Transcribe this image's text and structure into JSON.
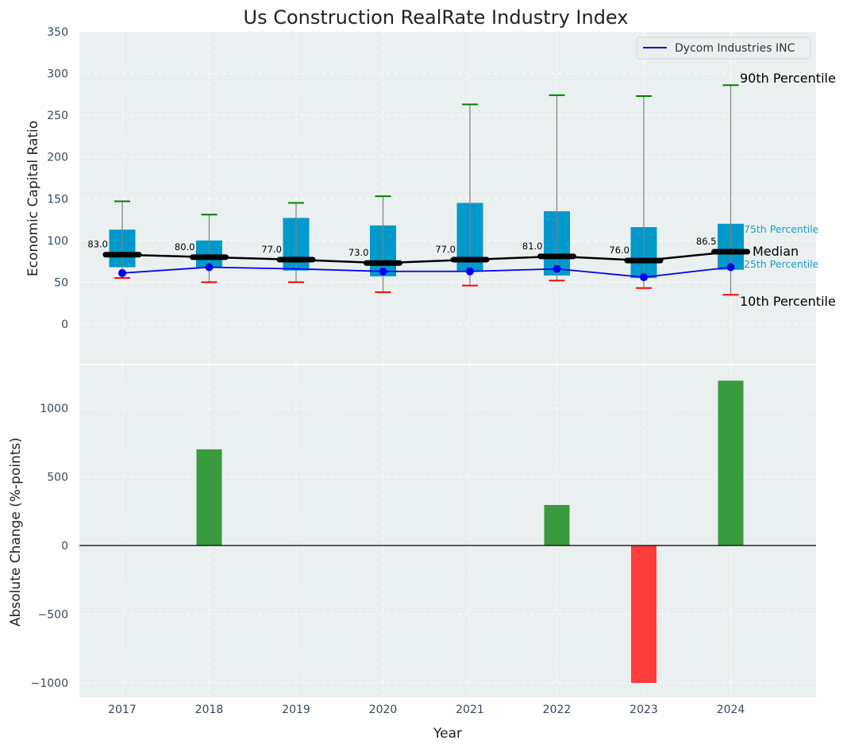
{
  "chart_data": [
    {
      "type": "box",
      "title": "Us Construction RealRate Industry Index",
      "xlabel": "",
      "ylabel": "Economic Capital Ratio",
      "ylim": [
        -50,
        350
      ],
      "yticks": [
        0,
        50,
        100,
        150,
        200,
        250,
        300,
        350
      ],
      "grid": true,
      "categories": [
        "2017",
        "2018",
        "2019",
        "2020",
        "2021",
        "2022",
        "2023",
        "2024"
      ],
      "percentiles": {
        "p10": [
          55,
          50,
          50,
          38,
          46,
          52,
          43,
          35
        ],
        "p25": [
          68,
          67,
          64,
          57,
          63,
          58,
          55,
          65
        ],
        "median": [
          83.0,
          80.0,
          77.0,
          73.0,
          77.0,
          81.0,
          76.0,
          86.5
        ],
        "p75": [
          113,
          100,
          127,
          118,
          145,
          135,
          116,
          120
        ],
        "p90": [
          147,
          131,
          145,
          153,
          263,
          274,
          273,
          286
        ]
      },
      "median_labels": [
        "83.0",
        "80.0",
        "77.0",
        "73.0",
        "77.0",
        "81.0",
        "76.0",
        "86.5"
      ],
      "series": [
        {
          "name": "Dycom Industries INC",
          "values": [
            61,
            68,
            66,
            63,
            63,
            66,
            56,
            68
          ],
          "markers": [
            true,
            true,
            false,
            true,
            true,
            true,
            true,
            true
          ],
          "color": "#0000ee"
        }
      ],
      "legend": {
        "entries": [
          "Dycom Industries INC"
        ],
        "position": "top-right"
      },
      "annotations": {
        "p90": "90th Percentile",
        "p75": "75th Percentile",
        "median": "Median",
        "p25": "25th Percentile",
        "p10": "10th Percentile"
      },
      "colors": {
        "box": "#0099cc",
        "median": "#000000",
        "p90_cap": "#008000",
        "p10_cap": "#ff0000",
        "whisker": "#808080",
        "annot_small": "#1a9fc9",
        "background": "#eaeff0"
      }
    },
    {
      "type": "bar",
      "xlabel": "Year",
      "ylabel": "Absolute Change (%-points)",
      "ylim": [
        -1100,
        1350
      ],
      "yticks": [
        -1000,
        -500,
        0,
        500,
        1000
      ],
      "ytick_labels": [
        "−1000",
        "−500",
        "0",
        "500",
        "1000"
      ],
      "grid": true,
      "categories": [
        "2017",
        "2018",
        "2019",
        "2020",
        "2021",
        "2022",
        "2023",
        "2024"
      ],
      "values": [
        0,
        700,
        0,
        0,
        0,
        295,
        -1000,
        1200
      ],
      "colors": {
        "positive": "#3a9a3e",
        "negative": "#fe3c3c",
        "zero_line": "#000000"
      }
    }
  ]
}
